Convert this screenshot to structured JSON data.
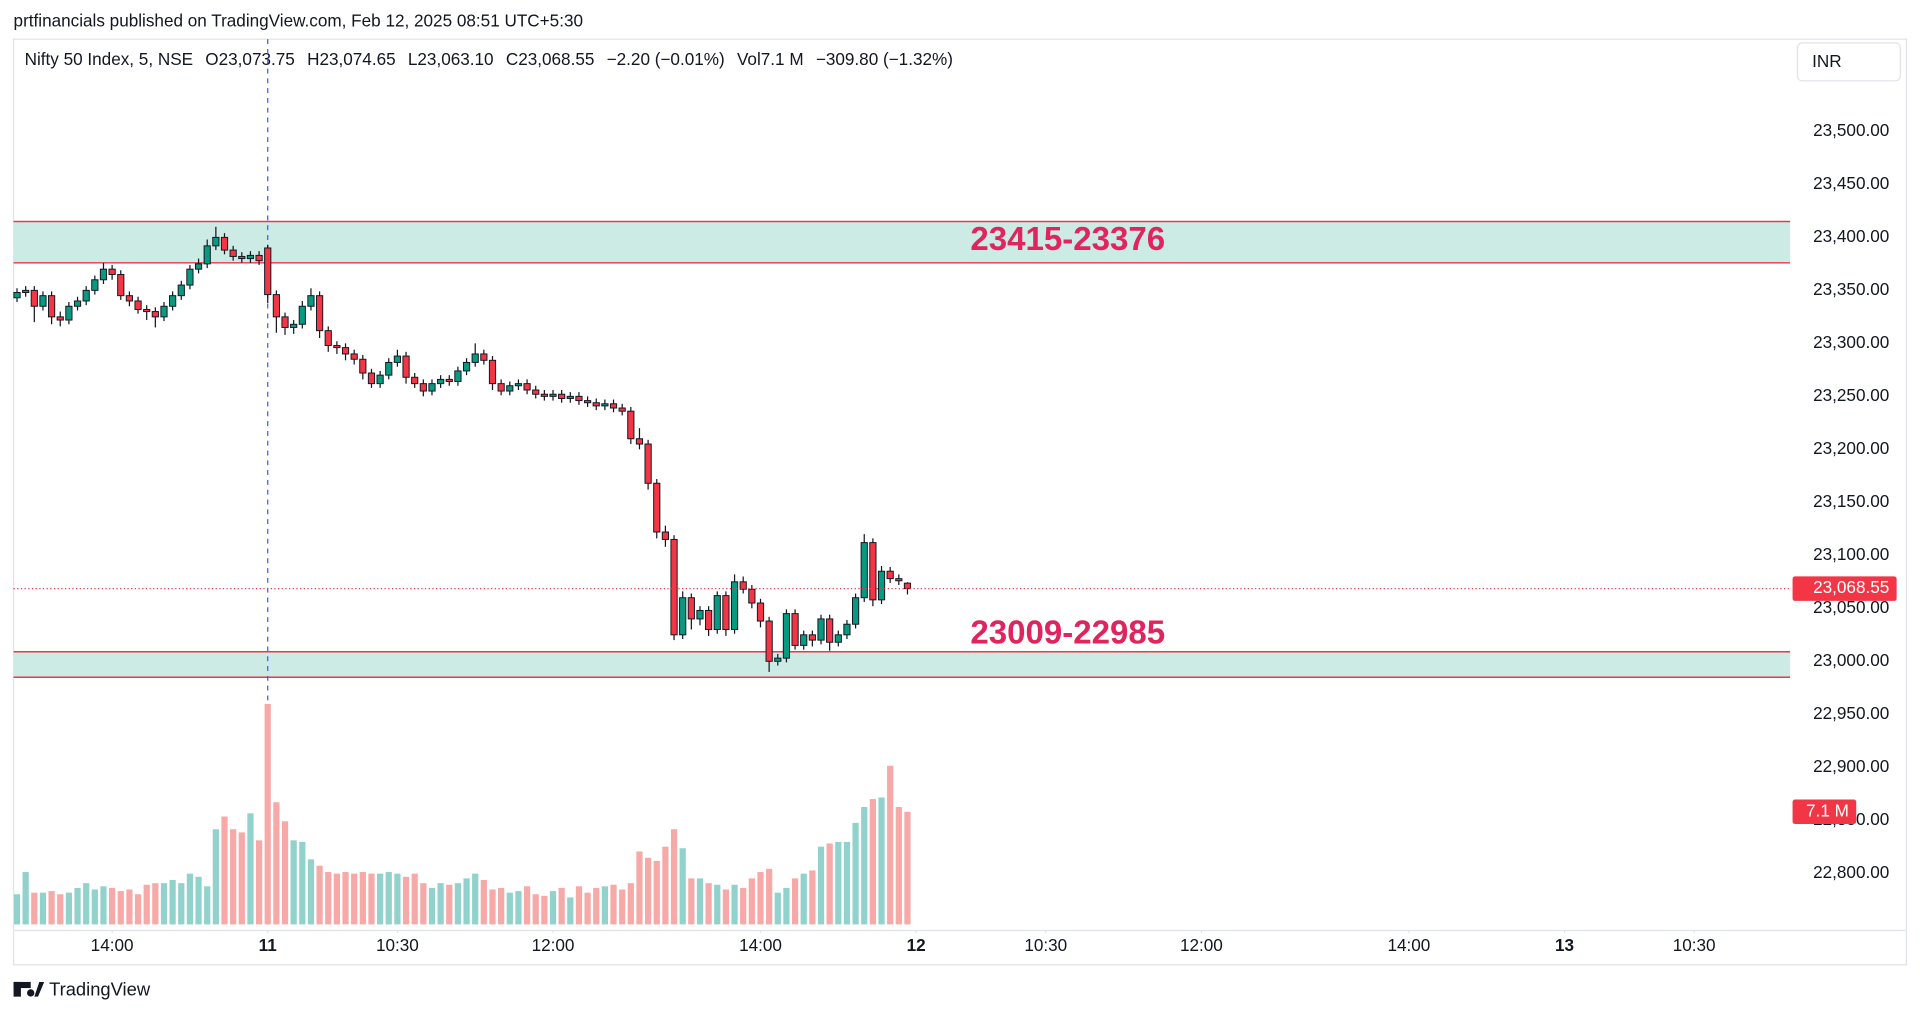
{
  "chart_data": {
    "type": "candlestick",
    "header": "prtfinancials published on TradingView.com, Feb 12, 2025 08:51 UTC+5:30",
    "symbol": "Nifty 50 Index, 5, NSE",
    "legend": [
      {
        "label": "O",
        "value": "23,073.75"
      },
      {
        "label": "H",
        "value": "23,074.65"
      },
      {
        "label": "L",
        "value": "23,063.10"
      },
      {
        "label": "C",
        "value": "23,068.55"
      },
      {
        "label": "",
        "value": "−2.20 (−0.01%)"
      },
      {
        "label": "Vol",
        "value": "7.1 M"
      },
      {
        "label": "",
        "value": "−309.80 (−1.32%)"
      }
    ],
    "currency": "INR",
    "brand": "TradingView",
    "open": [
      23343,
      23348,
      23350,
      23335,
      23345,
      23325,
      23322,
      23335,
      23340,
      23350,
      23360,
      23370,
      23365,
      23345,
      23340,
      23332,
      23330,
      23325,
      23335,
      23345,
      23355,
      23370,
      23375,
      23392,
      23400,
      23388,
      23382,
      23380,
      23383,
      23390,
      23346,
      23325,
      23315,
      23318,
      23335,
      23345,
      23312,
      23298,
      23296,
      23290,
      23285,
      23272,
      23262,
      23270,
      23282,
      23288,
      23268,
      23262,
      23255,
      23262,
      23266,
      23264,
      23274,
      23282,
      23290,
      23284,
      23262,
      23255,
      23260,
      23262,
      23256,
      23252,
      23250,
      23252,
      23248,
      23250,
      23246,
      23244,
      23241,
      23243,
      23239,
      23236,
      23210,
      23205,
      23168,
      23122,
      23115,
      23025,
      23060,
      23040,
      23048,
      23030,
      23062,
      23030,
      23075,
      23068,
      23055,
      23038,
      23000,
      23003,
      23045,
      23015,
      23025,
      23020,
      23040,
      23018,
      23025,
      23035,
      23060,
      23112,
      23058,
      23085,
      23078,
      23073.75
    ],
    "high": [
      23352,
      23354,
      23354,
      23349,
      23349,
      23330,
      23339,
      23344,
      23354,
      23364,
      23376,
      23374,
      23369,
      23349,
      23344,
      23336,
      23334,
      23339,
      23349,
      23359,
      23374,
      23380,
      23398,
      23410,
      23404,
      23392,
      23386,
      23387,
      23387,
      23393,
      23350,
      23329,
      23322,
      23340,
      23352,
      23349,
      23316,
      23302,
      23300,
      23294,
      23289,
      23276,
      23274,
      23286,
      23294,
      23292,
      23272,
      23266,
      23266,
      23270,
      23270,
      23278,
      23286,
      23300,
      23294,
      23288,
      23266,
      23264,
      23266,
      23266,
      23260,
      23256,
      23256,
      23256,
      23254,
      23254,
      23250,
      23248,
      23247,
      23247,
      23243,
      23240,
      23220,
      23209,
      23172,
      23128,
      23119,
      23066,
      23064,
      23052,
      23052,
      23066,
      23066,
      23082,
      23080,
      23072,
      23059,
      23042,
      23007,
      23049,
      23049,
      23029,
      23029,
      23044,
      23044,
      23029,
      23039,
      23064,
      23120,
      23116,
      23090,
      23089,
      23082,
      23074.65
    ],
    "low": [
      23339,
      23344,
      23320,
      23331,
      23318,
      23316,
      23318,
      23331,
      23336,
      23346,
      23356,
      23360,
      23341,
      23335,
      23328,
      23322,
      23315,
      23321,
      23331,
      23341,
      23351,
      23366,
      23371,
      23388,
      23384,
      23378,
      23376,
      23376,
      23374,
      23338,
      23310,
      23308,
      23309,
      23314,
      23331,
      23305,
      23292,
      23290,
      23284,
      23280,
      23266,
      23258,
      23258,
      23266,
      23278,
      23262,
      23258,
      23250,
      23251,
      23258,
      23260,
      23260,
      23270,
      23278,
      23280,
      23256,
      23251,
      23251,
      23256,
      23252,
      23248,
      23246,
      23246,
      23244,
      23244,
      23242,
      23240,
      23237,
      23237,
      23235,
      23232,
      23205,
      23200,
      23162,
      23116,
      23108,
      23020,
      23021,
      23030,
      23034,
      23024,
      23026,
      23024,
      23026,
      23064,
      23050,
      23032,
      22990,
      22996,
      22999,
      23011,
      23011,
      23014,
      23016,
      23010,
      23014,
      23021,
      23031,
      23056,
      23052,
      23054,
      23074,
      23072,
      23063.1
    ],
    "close": [
      23348,
      23350,
      23335,
      23345,
      23325,
      23322,
      23335,
      23340,
      23350,
      23360,
      23370,
      23365,
      23345,
      23340,
      23332,
      23330,
      23325,
      23335,
      23345,
      23355,
      23370,
      23375,
      23392,
      23400,
      23388,
      23382,
      23380,
      23383,
      23378,
      23346,
      23325,
      23315,
      23318,
      23335,
      23345,
      23312,
      23298,
      23296,
      23290,
      23285,
      23272,
      23262,
      23270,
      23282,
      23288,
      23268,
      23262,
      23255,
      23262,
      23266,
      23264,
      23274,
      23282,
      23290,
      23284,
      23262,
      23255,
      23260,
      23262,
      23256,
      23252,
      23250,
      23252,
      23248,
      23250,
      23246,
      23244,
      23241,
      23243,
      23239,
      23236,
      23210,
      23205,
      23168,
      23122,
      23115,
      23025,
      23060,
      23040,
      23048,
      23030,
      23062,
      23030,
      23075,
      23068,
      23055,
      23038,
      23000,
      23003,
      23045,
      23015,
      23025,
      23020,
      23040,
      23018,
      23025,
      23035,
      23060,
      23112,
      23058,
      23085,
      23078,
      23076,
      23068.55
    ],
    "volume": [
      1.9,
      3.3,
      2.0,
      2.0,
      2.1,
      1.9,
      2.0,
      2.3,
      2.6,
      2.2,
      2.4,
      2.3,
      2.1,
      2.2,
      1.9,
      2.5,
      2.6,
      2.6,
      2.8,
      2.6,
      3.2,
      3.0,
      2.4,
      6.0,
      6.8,
      6.0,
      5.8,
      7.0,
      5.3,
      13.9,
      7.7,
      6.5,
      5.3,
      5.2,
      4.1,
      3.7,
      3.3,
      3.2,
      3.3,
      3.2,
      3.3,
      3.2,
      3.2,
      3.3,
      3.2,
      3.0,
      3.2,
      2.6,
      2.3,
      2.6,
      2.5,
      2.6,
      2.9,
      3.2,
      2.8,
      2.2,
      2.3,
      2.0,
      2.1,
      2.4,
      1.9,
      1.8,
      2.1,
      2.3,
      1.7,
      2.4,
      2.0,
      2.3,
      2.4,
      2.5,
      2.2,
      2.6,
      4.6,
      4.2,
      4.0,
      4.9,
      6.0,
      4.8,
      2.9,
      2.9,
      2.6,
      2.5,
      2.2,
      2.5,
      2.3,
      2.9,
      3.3,
      3.5,
      2.0,
      2.3,
      2.9,
      3.2,
      3.4,
      4.9,
      5.1,
      5.2,
      5.2,
      6.4,
      7.4,
      7.9,
      8.0,
      10.0,
      7.4,
      7.1
    ],
    "up_color": "#089981",
    "down_color": "#f23645",
    "vol_up_color": "#92d2cc",
    "vol_down_color": "#f7a9a7",
    "ylim": [
      22746,
      23587
    ],
    "vlim": [
      0,
      55.8
    ],
    "xlim": [
      -0.4,
      205.1
    ],
    "grid": false,
    "yticks": [
      {
        "value": 22800,
        "label": "22,800.00"
      },
      {
        "value": 22850,
        "label": "22,850.00"
      },
      {
        "value": 22900,
        "label": "22,900.00"
      },
      {
        "value": 22950,
        "label": "22,950.00"
      },
      {
        "value": 23000,
        "label": "23,000.00"
      },
      {
        "value": 23050,
        "label": "23,050.00"
      },
      {
        "value": 23100,
        "label": "23,100.00"
      },
      {
        "value": 23150,
        "label": "23,150.00"
      },
      {
        "value": 23200,
        "label": "23,200.00"
      },
      {
        "value": 23250,
        "label": "23,250.00"
      },
      {
        "value": 23300,
        "label": "23,300.00"
      },
      {
        "value": 23350,
        "label": "23,350.00"
      },
      {
        "value": 23400,
        "label": "23,400.00"
      },
      {
        "value": 23450,
        "label": "23,450.00"
      },
      {
        "value": 23500,
        "label": "23,500.00"
      }
    ],
    "xticks": [
      {
        "value": 11,
        "label": "14:00"
      },
      {
        "value": 29,
        "label": "11"
      },
      {
        "value": 44,
        "label": "10:30"
      },
      {
        "value": 62,
        "label": "12:00"
      },
      {
        "value": 86,
        "label": "14:00"
      },
      {
        "value": 104,
        "label": "12"
      },
      {
        "value": 119,
        "label": "10:30"
      },
      {
        "value": 137,
        "label": "12:00"
      },
      {
        "value": 161,
        "label": "14:00"
      },
      {
        "value": 179,
        "label": "13"
      },
      {
        "value": 194,
        "label": "10:30"
      }
    ],
    "session_break": 29,
    "zones": [
      {
        "label": "23415-23376",
        "top": 23415,
        "bottom": 23376
      },
      {
        "label": "23009-22985",
        "top": 23009,
        "bottom": 22985
      }
    ],
    "last_price": {
      "value": 23068.55,
      "label": "23,068.55"
    },
    "last_volume": {
      "value": 7.1,
      "label": "7.1 M"
    }
  }
}
